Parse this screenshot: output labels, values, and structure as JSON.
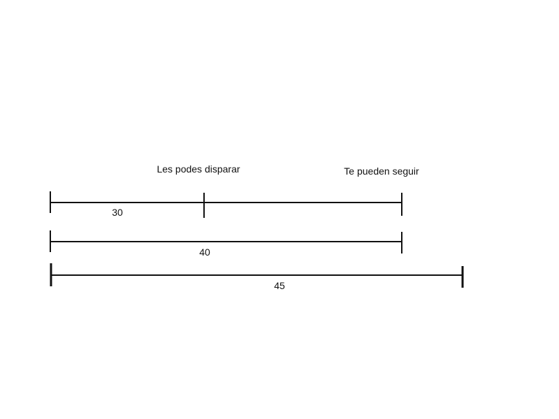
{
  "labels": {
    "zone_shoot": "Les podes disparar",
    "zone_follow": "Te pueden seguir"
  },
  "segments": [
    {
      "id": "range-30",
      "value": "30"
    },
    {
      "id": "range-40",
      "value": "40"
    },
    {
      "id": "range-45",
      "value": "45"
    }
  ],
  "colors": {
    "line": "#111111",
    "text": "#111111",
    "background": "#ffffff"
  }
}
